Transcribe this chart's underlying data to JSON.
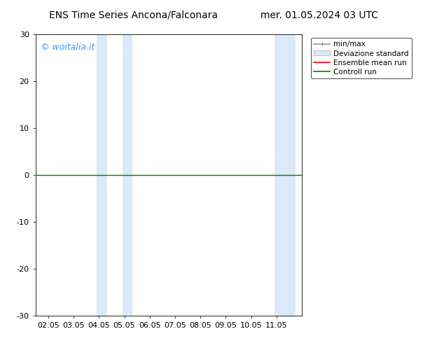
{
  "title_left": "ENS Time Series Ancona/Falconara",
  "title_right": "mer. 01.05.2024 03 UTC",
  "watermark": "© woitalia.it",
  "watermark_color": "#3399ff",
  "ylim": [
    -30,
    30
  ],
  "yticks": [
    -30,
    -20,
    -10,
    0,
    10,
    20,
    30
  ],
  "xtick_labels": [
    "02.05",
    "03.05",
    "04.05",
    "05.05",
    "06.05",
    "07.05",
    "08.05",
    "09.05",
    "10.05",
    "11.05"
  ],
  "xtick_positions": [
    2,
    3,
    4,
    5,
    6,
    7,
    8,
    9,
    10,
    11
  ],
  "xlim": [
    1.5,
    12.0
  ],
  "shaded_bands": [
    {
      "xmin": 3.92,
      "xmax": 4.33,
      "color": "#dbe9f8"
    },
    {
      "xmin": 4.92,
      "xmax": 5.33,
      "color": "#dbe9f8"
    },
    {
      "xmin": 10.92,
      "xmax": 11.33,
      "color": "#dbe9f8"
    },
    {
      "xmin": 11.33,
      "xmax": 11.75,
      "color": "#dbe9f8"
    }
  ],
  "control_run_color": "green",
  "legend_labels": [
    "min/max",
    "Deviazione standard",
    "Ensemble mean run",
    "Controll run"
  ],
  "legend_colors_line": [
    "#999999",
    "#ccddee",
    "red",
    "green"
  ],
  "background_color": "white",
  "font_size": 8,
  "title_font_size": 10
}
